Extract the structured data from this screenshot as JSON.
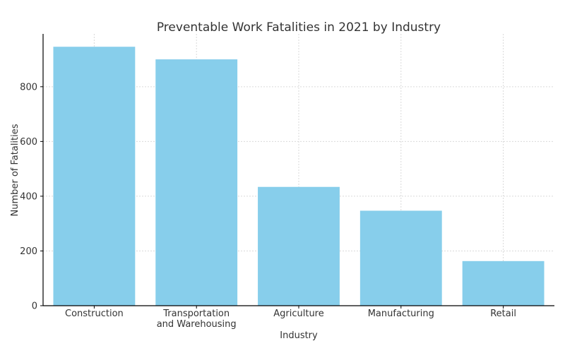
{
  "chart_data": {
    "type": "bar",
    "title": "Preventable Work Fatalities in 2021 by Industry",
    "xlabel": "Industry",
    "ylabel": "Number of Fatalities",
    "categories": [
      [
        "Construction"
      ],
      [
        "Transportation",
        "and Warehousing"
      ],
      [
        "Agriculture"
      ],
      [
        "Manufacturing"
      ],
      [
        "Retail"
      ]
    ],
    "values": [
      946,
      900,
      434,
      347,
      163
    ],
    "ylim": [
      0,
      993
    ],
    "yticks": [
      0,
      200,
      400,
      600,
      800
    ],
    "grid": true,
    "bar_color": "#87ceeb"
  }
}
